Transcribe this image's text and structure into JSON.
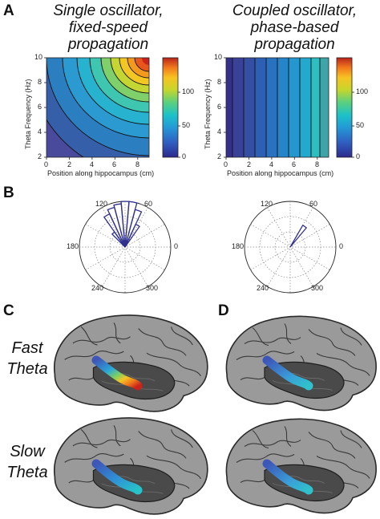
{
  "panel_labels": {
    "a": "A",
    "b": "B",
    "c": "C",
    "d": "D"
  },
  "titles": {
    "left": [
      "Single oscillator,",
      "fixed-speed",
      "propagation"
    ],
    "right": [
      "Coupled oscillator,",
      "phase-based",
      "propagation"
    ]
  },
  "axes": {
    "xlabel": "Position along hippocampus (cm)",
    "ylabel": "Theta Frequency (Hz)",
    "x_ticks": [
      "0",
      "2",
      "4",
      "6",
      "8"
    ],
    "y_ticks": [
      "10",
      "8",
      "6",
      "4",
      "2"
    ],
    "colorbar_ticks": [
      "100",
      "50",
      "0"
    ]
  },
  "polar": {
    "angle_labels": {
      "a120": "120",
      "a60": "60",
      "a180": "180",
      "a0": "0",
      "a240": "240",
      "a300": "300"
    }
  },
  "brain_labels": {
    "fast": [
      "Fast",
      "Theta"
    ],
    "slow": [
      "Slow",
      "Theta"
    ]
  },
  "chart_data": [
    {
      "type": "heatmap",
      "panel": "A-left",
      "title": "Single oscillator, fixed-speed propagation",
      "xlabel": "Position along hippocampus (cm)",
      "ylabel": "Theta Frequency (Hz)",
      "xlim": [
        0,
        9
      ],
      "ylim": [
        2,
        10
      ],
      "colorbar": {
        "ticks": [
          0,
          50,
          100
        ],
        "range": [
          0,
          140
        ]
      },
      "description_value": "phase lag ≈ 360 × frequency × position / speed (contours curve)"
    },
    {
      "type": "heatmap",
      "panel": "A-right",
      "title": "Coupled oscillator, phase-based propagation",
      "xlabel": "Position along hippocampus (cm)",
      "ylabel": "Theta Frequency (Hz)",
      "xlim": [
        0,
        9
      ],
      "ylim": [
        2,
        10
      ],
      "colorbar": {
        "ticks": [
          0,
          50,
          100
        ],
        "range": [
          0,
          140
        ]
      },
      "description_value": "phase lag independent of frequency (vertical bands)"
    },
    {
      "type": "bar",
      "panel": "B-left",
      "polar": true,
      "categories": [
        60,
        70,
        80,
        90,
        100,
        110,
        120,
        130
      ],
      "values": [
        0.55,
        0.85,
        1.0,
        1.0,
        0.95,
        0.9,
        0.8,
        0.4
      ],
      "angle_labels": [
        0,
        60,
        120,
        180,
        240,
        300
      ]
    },
    {
      "type": "bar",
      "panel": "B-right",
      "polar": true,
      "categories": [
        55
      ],
      "values": [
        0.55
      ],
      "angle_labels": [
        0,
        60,
        120,
        180,
        240,
        300
      ]
    }
  ],
  "colors": {
    "cmap": [
      "#2b2a8c",
      "#2f5fc1",
      "#2399d6",
      "#1cc1c9",
      "#59d07f",
      "#c7d62b",
      "#f6c322",
      "#f27a1c",
      "#d7301f"
    ],
    "contour_line": "#111111",
    "polar_bar": "#2e2f8f",
    "brain_gray": "#8a8a8a"
  }
}
